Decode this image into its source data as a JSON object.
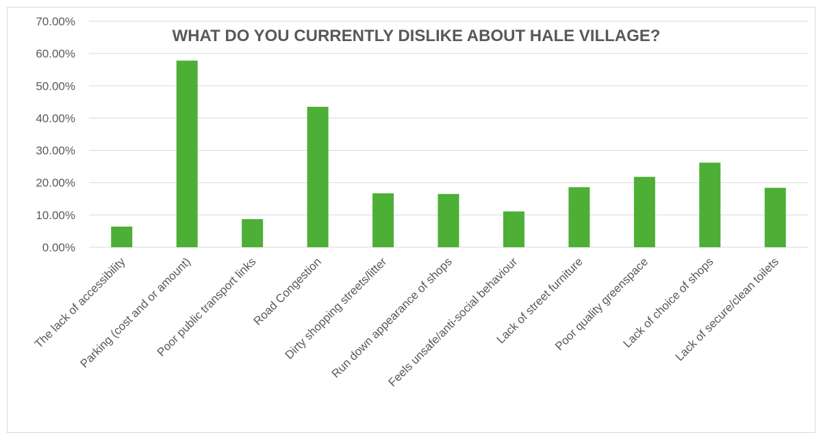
{
  "chart_data": {
    "type": "bar",
    "title": "WHAT DO YOU CURRENTLY DISLIKE ABOUT HALE VILLAGE?",
    "xlabel": "",
    "ylabel": "",
    "ylim": [
      0,
      0.7
    ],
    "yticks": [
      "0.00%",
      "10.00%",
      "20.00%",
      "30.00%",
      "40.00%",
      "50.00%",
      "60.00%",
      "70.00%"
    ],
    "grid": true,
    "bar_color": "#4daf36",
    "categories": [
      "The lack of accessibility",
      "Parking (cost and or amount)",
      "Poor public transport links",
      "Road Congestion",
      "Dirty shopping streets/litter",
      "Run down appearance of shops",
      "Feels unsafe/anti-social behaviour",
      "Lack of street furniture",
      "Poor quality greenspace",
      "Lack of choice of shops",
      "Lack of secure/clean toilets"
    ],
    "values": [
      0.064,
      0.578,
      0.087,
      0.435,
      0.167,
      0.165,
      0.111,
      0.186,
      0.218,
      0.262,
      0.184
    ]
  }
}
